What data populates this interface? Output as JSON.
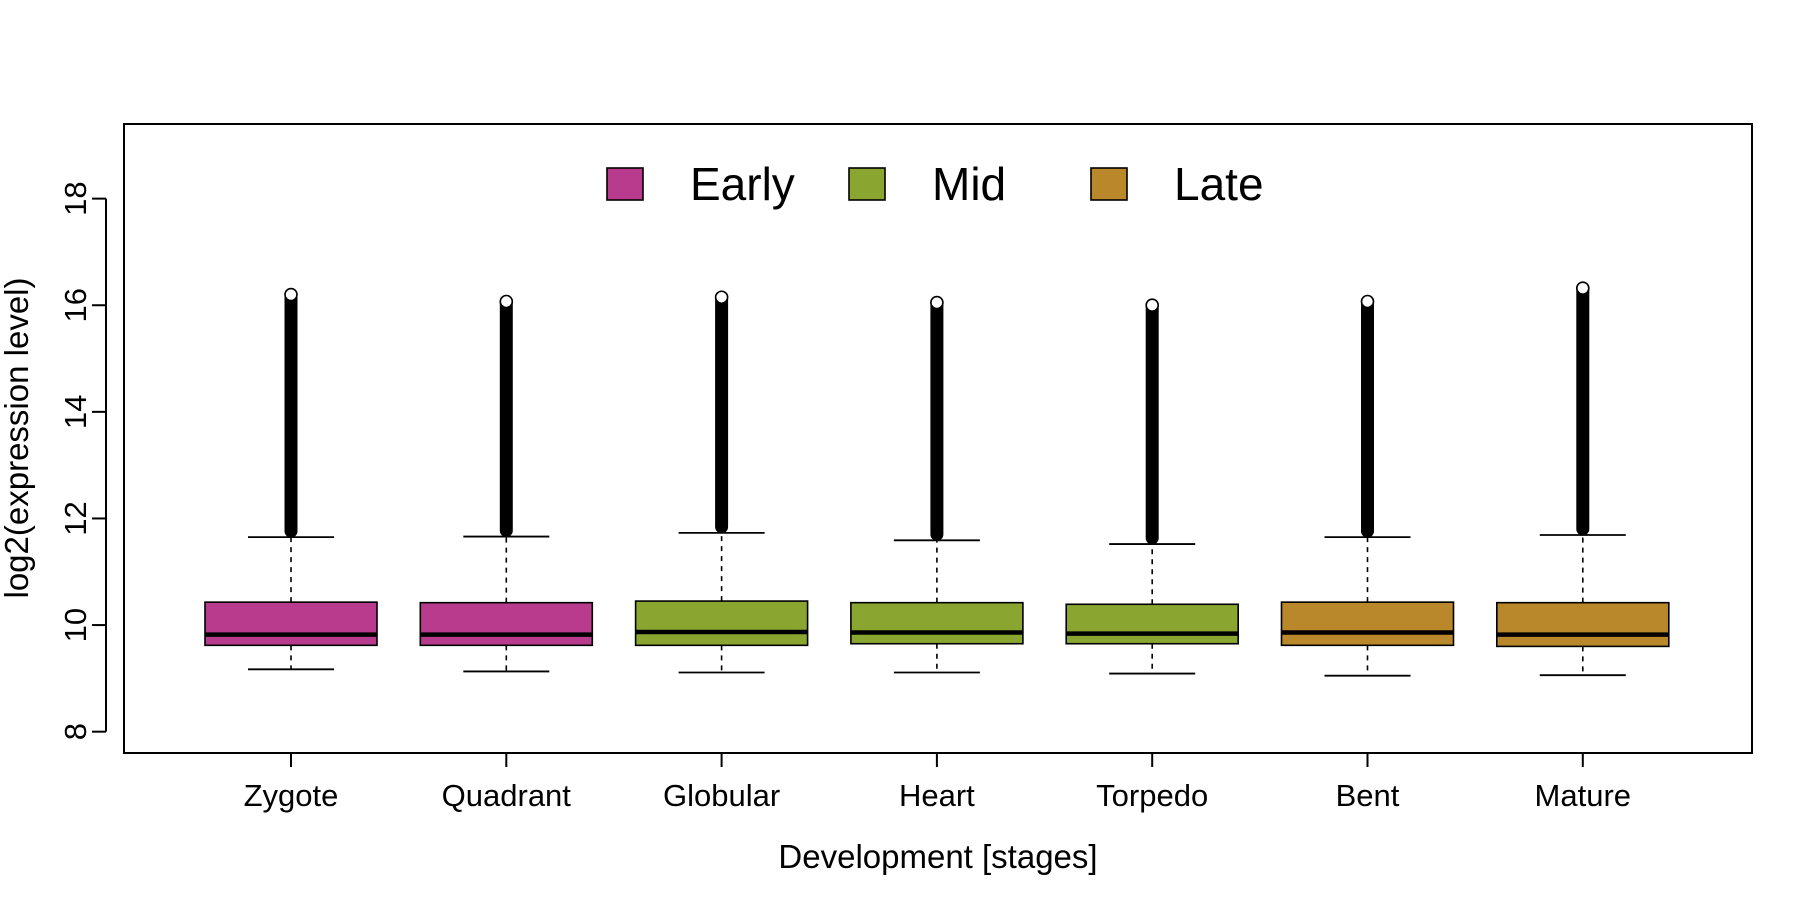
{
  "chart_data": {
    "type": "boxplot",
    "title": "",
    "xlabel": "Development [stages]",
    "ylabel": "log2(expression level)",
    "ylim": [
      7.6,
      19.4
    ],
    "yticks": [
      "8",
      "10",
      "12",
      "14",
      "16",
      "18"
    ],
    "grid": false,
    "legend_position": "top-center",
    "categories": [
      "Zygote",
      "Quadrant",
      "Globular",
      "Heart",
      "Torpedo",
      "Bent",
      "Mature"
    ],
    "groups": [
      "Early",
      "Early",
      "Mid",
      "Mid",
      "Mid",
      "Late",
      "Late"
    ],
    "legend": [
      {
        "label": "Early",
        "color": "#B83B8E"
      },
      {
        "label": "Mid",
        "color": "#8AA631"
      },
      {
        "label": "Late",
        "color": "#B8882B"
      }
    ],
    "boxes": [
      {
        "category": "Zygote",
        "whisker_low": 9.17,
        "q1": 9.62,
        "median": 9.82,
        "q3": 10.43,
        "whisker_high": 11.65,
        "outlier_max": 16.2
      },
      {
        "category": "Quadrant",
        "whisker_low": 9.13,
        "q1": 9.62,
        "median": 9.82,
        "q3": 10.42,
        "whisker_high": 11.66,
        "outlier_max": 16.07
      },
      {
        "category": "Globular",
        "whisker_low": 9.11,
        "q1": 9.62,
        "median": 9.87,
        "q3": 10.45,
        "whisker_high": 11.73,
        "outlier_max": 16.15
      },
      {
        "category": "Heart",
        "whisker_low": 9.11,
        "q1": 9.65,
        "median": 9.86,
        "q3": 10.42,
        "whisker_high": 11.59,
        "outlier_max": 16.05
      },
      {
        "category": "Torpedo",
        "whisker_low": 9.09,
        "q1": 9.65,
        "median": 9.84,
        "q3": 10.39,
        "whisker_high": 11.52,
        "outlier_max": 16.0
      },
      {
        "category": "Bent",
        "whisker_low": 9.05,
        "q1": 9.62,
        "median": 9.86,
        "q3": 10.43,
        "whisker_high": 11.65,
        "outlier_max": 16.07
      },
      {
        "category": "Mature",
        "whisker_low": 9.06,
        "q1": 9.6,
        "median": 9.82,
        "q3": 10.42,
        "whisker_high": 11.69,
        "outlier_max": 16.32
      }
    ]
  }
}
